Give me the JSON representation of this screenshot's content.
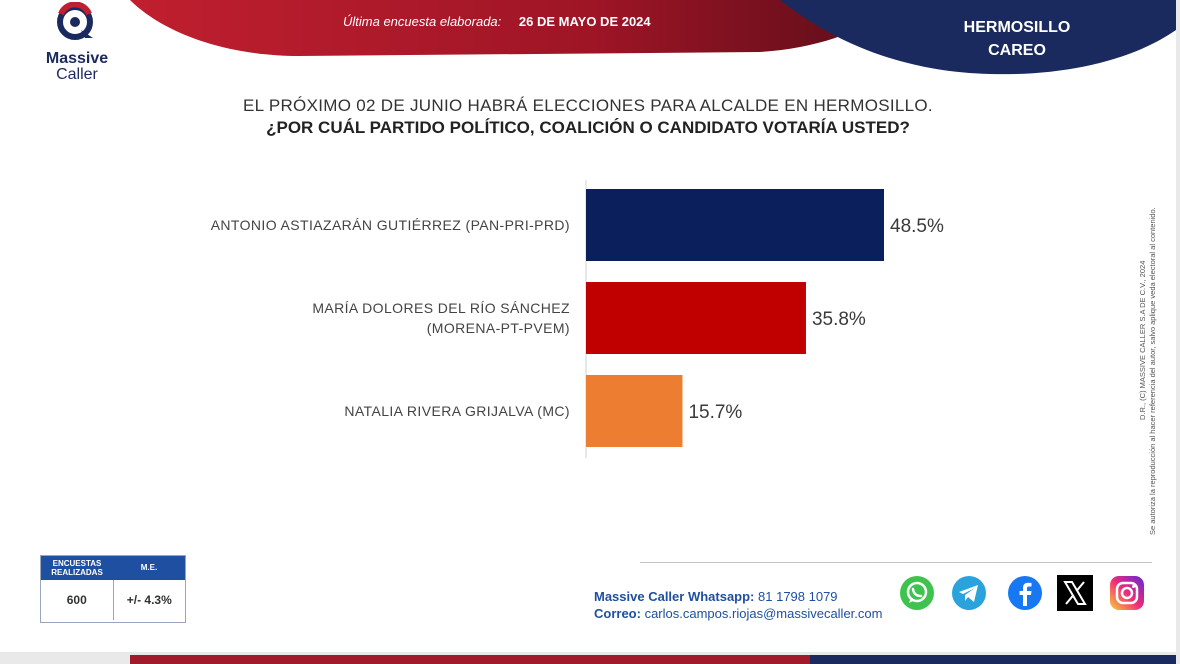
{
  "header": {
    "brand_name": "Massive",
    "brand_sub": "Caller",
    "survey_label": "Última encuesta elaborada:",
    "survey_date": "26 DE MAYO DE 2024",
    "region_line1": "HERMOSILLO",
    "region_line2": "CAREO"
  },
  "question": {
    "line1": "EL PRÓXIMO 02 DE JUNIO HABRÁ ELECCIONES PARA ALCALDE EN HERMOSILLO.",
    "line2": "¿POR CUÁL PARTIDO POLÍTICO, COALICIÓN O CANDIDATO  VOTARÍA USTED?"
  },
  "chart_data": {
    "type": "bar",
    "orientation": "horizontal",
    "categories": [
      [
        "ANTONIO ASTIAZARÁN GUTIÉRREZ (PAN-PRI-PRD)"
      ],
      [
        "MARÍA DOLORES DEL RÍO SÁNCHEZ",
        "(MORENA-PT-PVEM)"
      ],
      [
        "NATALIA RIVERA GRIJALVA (MC)"
      ]
    ],
    "values": [
      48.5,
      35.8,
      15.7
    ],
    "value_labels": [
      "48.5%",
      "35.8%",
      "15.7%"
    ],
    "colors": [
      "#0b1f5c",
      "#c00000",
      "#ed7d31"
    ],
    "xlim": [
      0,
      50
    ],
    "title": "",
    "xlabel": "",
    "ylabel": ""
  },
  "stats": {
    "col1_header_line1": "ENCUESTAS",
    "col1_header_line2": "REALIZADAS",
    "col2_header": "M.E.",
    "sample_size": "600",
    "margin_error": "+/- 4.3%"
  },
  "footer": {
    "whatsapp_label": "Massive Caller Whatsapp:",
    "whatsapp_number": "81 1798  1079",
    "email_label": "Correo:",
    "email": "carlos.campos.riojas@massivecaller.com"
  },
  "legal": {
    "line1": "D.R., (C) MASSIVE CALLER S.A DE C.V., 2024",
    "line2": "Se autoriza la reproducción al hacer referencia del autor, salvo aplique veda electoral al contenido."
  },
  "colors": {
    "banner_red": "#a11a2c",
    "banner_navy": "#1b2a5e",
    "brand_blue": "#1f4fa0"
  },
  "social_icons": [
    "whatsapp-icon",
    "telegram-icon",
    "facebook-icon",
    "x-icon",
    "instagram-icon"
  ]
}
